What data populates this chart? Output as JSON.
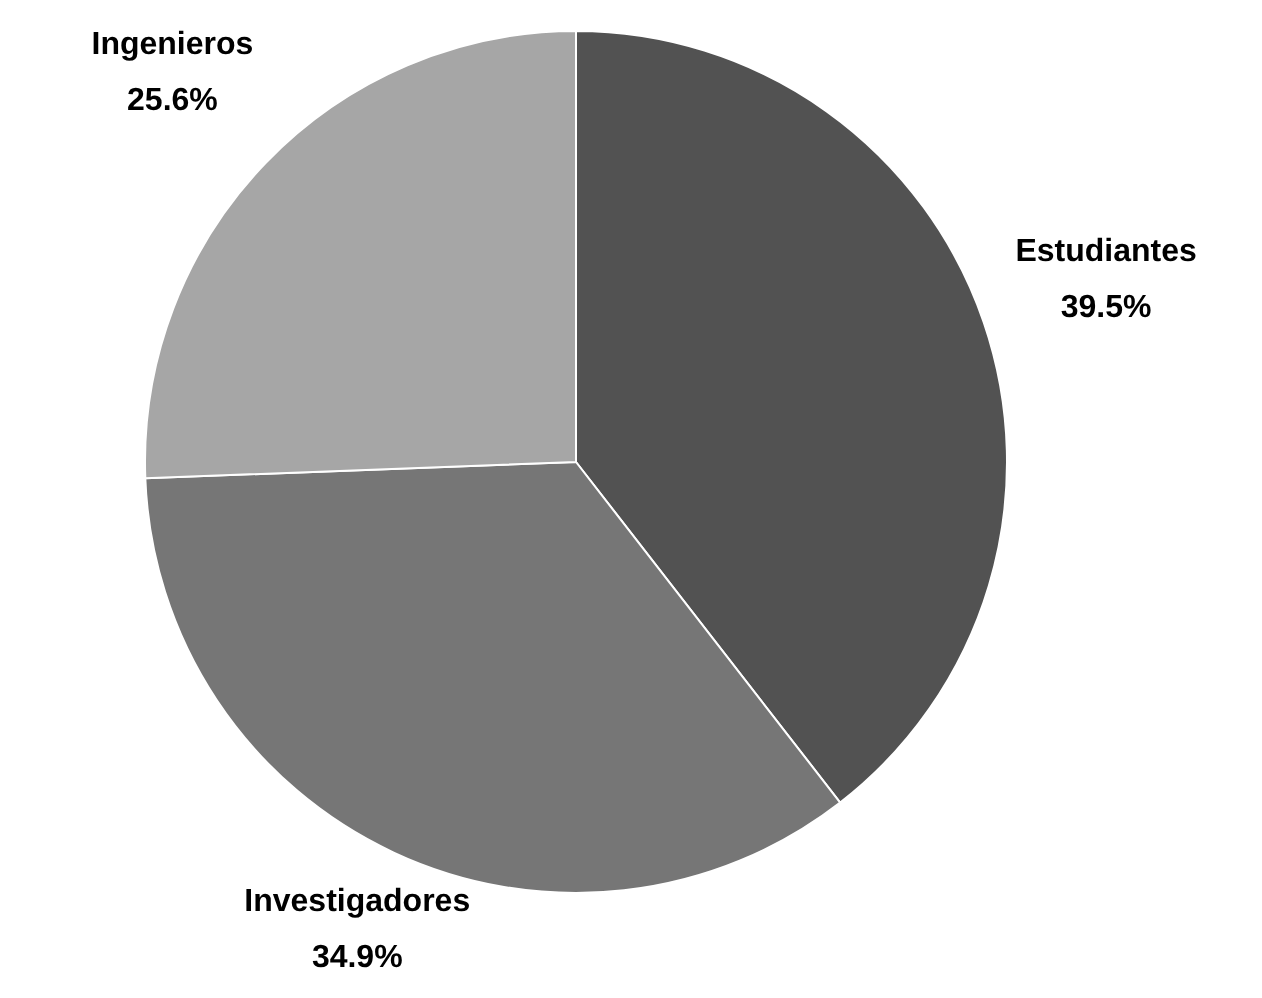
{
  "chart_data": {
    "type": "pie",
    "categories": [
      "Estudiantes",
      "Investigadores",
      "Ingenieros"
    ],
    "values": [
      39.5,
      34.9,
      25.6
    ],
    "colors": [
      "#525252",
      "#767676",
      "#a6a6a6"
    ],
    "value_labels": [
      "39.5%",
      "34.9%",
      "25.6%"
    ],
    "legend": false
  }
}
